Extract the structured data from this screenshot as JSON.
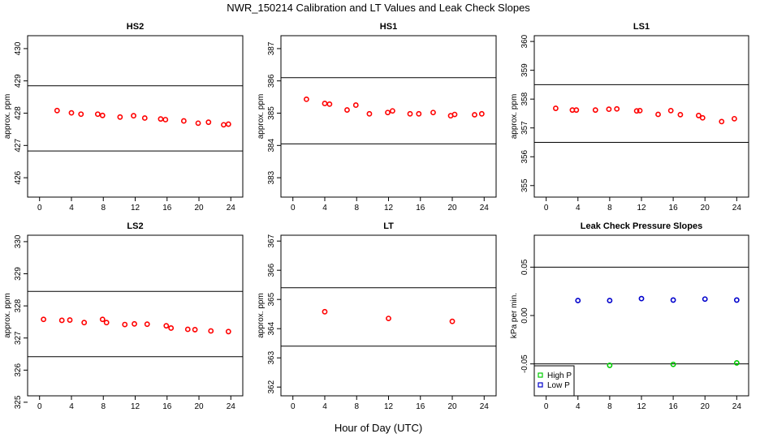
{
  "figure": {
    "title": "NWR_150214  Calibration and LT Values and Leak Check Slopes",
    "xlabel": "Hour of Day (UTC)"
  },
  "chart_data": [
    {
      "id": "hs2",
      "type": "scatter",
      "title": "HS2",
      "ylabel": "approx. ppm",
      "xlim": [
        -1.5,
        25.5
      ],
      "ylim": [
        425.4,
        430.4
      ],
      "xticks": [
        0,
        4,
        8,
        12,
        16,
        20,
        24
      ],
      "yticks": [
        426,
        427,
        428,
        429,
        430
      ],
      "hlines": [
        428.85,
        426.83
      ],
      "series": [
        {
          "name": "HS2",
          "color": "#ff0000",
          "marker": "circle",
          "x": [
            2.2,
            4.0,
            5.2,
            7.3,
            7.9,
            10.1,
            11.8,
            13.2,
            15.2,
            15.8,
            18.1,
            19.9,
            21.2,
            23.1,
            23.7
          ],
          "y": [
            428.08,
            428.01,
            427.97,
            427.97,
            427.93,
            427.88,
            427.92,
            427.85,
            427.82,
            427.8,
            427.76,
            427.69,
            427.72,
            427.64,
            427.66
          ]
        }
      ]
    },
    {
      "id": "hs1",
      "type": "scatter",
      "title": "HS1",
      "ylabel": "approx. ppm",
      "xlim": [
        -1.5,
        25.5
      ],
      "ylim": [
        382.4,
        387.4
      ],
      "xticks": [
        0,
        4,
        8,
        12,
        16,
        20,
        24
      ],
      "yticks": [
        383,
        384,
        385,
        386,
        387
      ],
      "hlines": [
        386.1,
        384.05
      ],
      "series": [
        {
          "name": "HS1",
          "color": "#ff0000",
          "marker": "circle",
          "x": [
            1.7,
            4.0,
            4.6,
            6.8,
            7.9,
            9.6,
            11.9,
            12.5,
            14.7,
            15.8,
            17.6,
            19.8,
            20.3,
            22.8,
            23.7
          ],
          "y": [
            385.43,
            385.3,
            385.28,
            385.1,
            385.25,
            384.98,
            385.02,
            385.07,
            384.98,
            384.98,
            385.02,
            384.92,
            384.96,
            384.95,
            384.98
          ]
        }
      ]
    },
    {
      "id": "ls1",
      "type": "scatter",
      "title": "LS1",
      "ylabel": "approx. ppm",
      "xlim": [
        -1.5,
        25.5
      ],
      "ylim": [
        354.6,
        360.2
      ],
      "xticks": [
        0,
        4,
        8,
        12,
        16,
        20,
        24
      ],
      "yticks": [
        355,
        356,
        357,
        358,
        359,
        360
      ],
      "hlines": [
        358.5,
        356.5
      ],
      "series": [
        {
          "name": "LS1",
          "color": "#ff0000",
          "marker": "circle",
          "x": [
            1.2,
            3.3,
            3.8,
            6.2,
            7.9,
            8.9,
            11.4,
            11.8,
            14.1,
            15.7,
            16.9,
            19.2,
            19.7,
            22.1,
            23.7
          ],
          "y": [
            357.68,
            357.62,
            357.62,
            357.62,
            357.65,
            357.66,
            357.59,
            357.6,
            357.47,
            357.6,
            357.46,
            357.43,
            357.35,
            357.22,
            357.32
          ]
        }
      ]
    },
    {
      "id": "ls2",
      "type": "scatter",
      "title": "LS2",
      "ylabel": "approx. ppm",
      "xlim": [
        -1.5,
        25.5
      ],
      "ylim": [
        325.2,
        330.2
      ],
      "xticks": [
        0,
        4,
        8,
        12,
        16,
        20,
        24
      ],
      "yticks": [
        325,
        326,
        327,
        328,
        329,
        330
      ],
      "hlines": [
        328.45,
        326.42
      ],
      "series": [
        {
          "name": "LS2",
          "color": "#ff0000",
          "marker": "circle",
          "x": [
            0.5,
            2.8,
            3.8,
            5.6,
            7.9,
            8.4,
            10.7,
            11.9,
            13.5,
            15.9,
            16.5,
            18.6,
            19.5,
            21.5,
            23.7
          ],
          "y": [
            327.58,
            327.55,
            327.56,
            327.48,
            327.58,
            327.48,
            327.42,
            327.44,
            327.43,
            327.38,
            327.31,
            327.27,
            327.26,
            327.22,
            327.2
          ]
        }
      ]
    },
    {
      "id": "lt",
      "type": "scatter",
      "title": "LT",
      "ylabel": "approx. ppm",
      "xlim": [
        -1.5,
        25.5
      ],
      "ylim": [
        361.7,
        367.2
      ],
      "xticks": [
        0,
        4,
        8,
        12,
        16,
        20,
        24
      ],
      "yticks": [
        362,
        363,
        364,
        365,
        366,
        367
      ],
      "hlines": [
        365.4,
        363.4
      ],
      "series": [
        {
          "name": "LT",
          "color": "#ff0000",
          "marker": "circle",
          "x": [
            4.0,
            12.0,
            20.0
          ],
          "y": [
            364.58,
            364.35,
            364.25
          ]
        }
      ]
    },
    {
      "id": "leak",
      "type": "scatter",
      "title": "Leak Check Pressure Slopes",
      "ylabel": "kPa per min.",
      "xlim": [
        -1.5,
        25.5
      ],
      "ylim": [
        -0.083,
        0.083
      ],
      "xticks": [
        0,
        4,
        8,
        12,
        16,
        20,
        24
      ],
      "yticks": [
        -0.05,
        0.0,
        0.05
      ],
      "ytick_labels": [
        "-0.05",
        "0.00",
        "0.05"
      ],
      "hlines": [
        0.05,
        -0.05
      ],
      "legend": {
        "position": "bottom-left",
        "entries": [
          "High P",
          "Low P"
        ]
      },
      "series": [
        {
          "name": "High P",
          "color": "#00cc00",
          "marker": "circle",
          "x": [
            8.0,
            16.0,
            24.0
          ],
          "y": [
            -0.0515,
            -0.0505,
            -0.049
          ]
        },
        {
          "name": "Low P",
          "color": "#0000cc",
          "marker": "circle",
          "x": [
            4.0,
            8.0,
            12.0,
            16.0,
            20.0,
            24.0
          ],
          "y": [
            0.0155,
            0.0155,
            0.0175,
            0.016,
            0.017,
            0.016
          ]
        }
      ]
    }
  ]
}
